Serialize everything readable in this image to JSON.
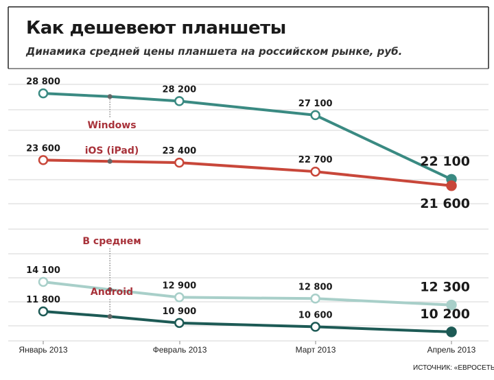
{
  "header": {
    "title": "Как дешевеют планшеты",
    "subtitle": "Динамика средней цены планшета на российском рынке, руб.",
    "source": "ИСТОЧНИК: «ЕВРОСЕТЬ»"
  },
  "colors": {
    "windows": "#3a8a82",
    "ios": "#c8473a",
    "average": "#a8cfc9",
    "android": "#1d5a55",
    "grid": "#d6d6d6",
    "label_series": "#a8323a"
  },
  "chart_data": {
    "type": "line",
    "title": "Как дешевеют планшеты",
    "subtitle": "Динамика средней цены планшета на российском рынке, руб.",
    "categories": [
      "Январь 2013",
      "Февраль 2013",
      "Март 2013",
      "Апрель 2013"
    ],
    "x": [
      0,
      1,
      2,
      3
    ],
    "xlim": [
      -0.05,
      3.05
    ],
    "ylim": [
      9500,
      31000
    ],
    "grid": true,
    "legend": "inline labels",
    "series": [
      {
        "name": "Windows",
        "color": "#3a8a82",
        "values": [
          28800,
          28200,
          27100,
          22100
        ],
        "labels": [
          "28 800",
          "28 200",
          "27 100",
          "22 100"
        ],
        "mid_point": {
          "x": 0.49,
          "value": 28550
        }
      },
      {
        "name": "iOS (iPad)",
        "color": "#c8473a",
        "values": [
          23600,
          23400,
          22700,
          21600
        ],
        "labels": [
          "23 600",
          "23 400",
          "22 700",
          "21 600"
        ],
        "mid_point": {
          "x": 0.49,
          "value": 23500
        }
      },
      {
        "name": "В среднем",
        "color": "#a8cfc9",
        "values": [
          14100,
          12900,
          12800,
          12300
        ],
        "labels": [
          "14 100",
          "12 900",
          "12 800",
          "12 300"
        ],
        "mid_point": {
          "x": 0.49,
          "value": 13500
        }
      },
      {
        "name": "Android",
        "color": "#1d5a55",
        "values": [
          11800,
          10900,
          10600,
          10200
        ],
        "labels": [
          "11 800",
          "10 900",
          "10 600",
          "10 200"
        ],
        "mid_point": {
          "x": 0.49,
          "value": 11400
        }
      }
    ]
  }
}
